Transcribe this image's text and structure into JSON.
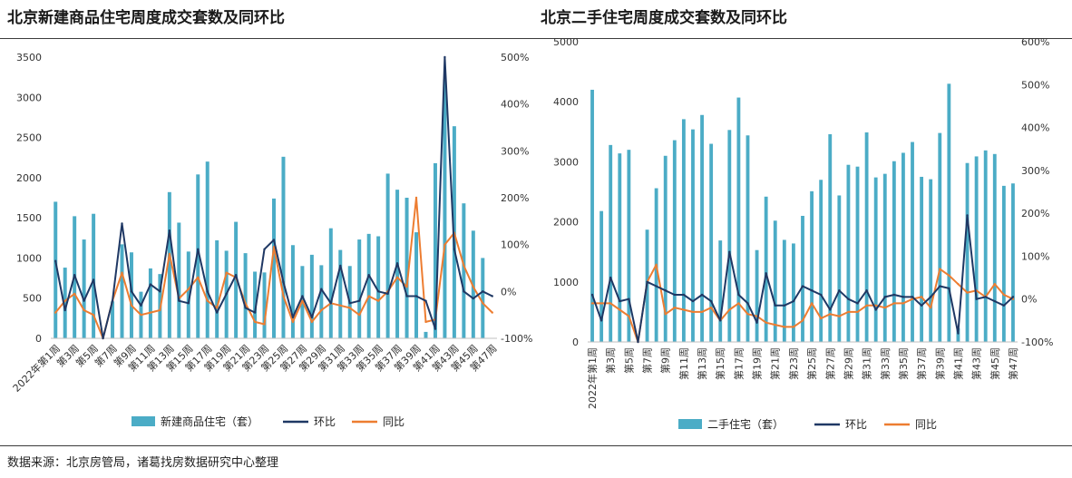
{
  "titles": {
    "left": "北京新建商品住宅周度成交套数及同环比",
    "right": "北京二手住宅周度成交套数及同环比"
  },
  "source": "数据来源：北京房管局，诸葛找房数据研究中心整理",
  "colors": {
    "bar": "#4bacc6",
    "mom": "#1f3864",
    "yoy": "#ed7d31"
  },
  "chart_data": [
    {
      "type": "bar",
      "title": "北京新建商品住宅周度成交套数及同环比",
      "categories": [
        "2022年第1周",
        "第2周",
        "第3周",
        "第4周",
        "第5周",
        "第6周",
        "第7周",
        "第8周",
        "第9周",
        "第10周",
        "第11周",
        "第12周",
        "第13周",
        "第14周",
        "第15周",
        "第16周",
        "第17周",
        "第18周",
        "第19周",
        "第20周",
        "第21周",
        "第22周",
        "第23周",
        "第24周",
        "第25周",
        "第26周",
        "第27周",
        "第28周",
        "第29周",
        "第30周",
        "第31周",
        "第32周",
        "第33周",
        "第34周",
        "第35周",
        "第36周",
        "第37周",
        "第38周",
        "第39周",
        "第40周",
        "第41周",
        "第42周",
        "第43周",
        "第44周",
        "第45周",
        "第46周",
        "第47周"
      ],
      "tick_labels": [
        "2022年第1周",
        "第3周",
        "第5周",
        "第7周",
        "第9周",
        "第11周",
        "第13周",
        "第15周",
        "第17周",
        "第19周",
        "第21周",
        "第23周",
        "第25周",
        "第27周",
        "第29周",
        "第31周",
        "第33周",
        "第35周",
        "第37周",
        "第39周",
        "第41周",
        "第43周",
        "第45周",
        "第47周"
      ],
      "ylim": [
        0,
        3500
      ],
      "y_ticks": [
        "0",
        "500",
        "1000",
        "1500",
        "2000",
        "2500",
        "3000",
        "3500"
      ],
      "y2lim": [
        -100,
        500
      ],
      "y2_ticks": [
        "-100%",
        "0%",
        "100%",
        "200%",
        "300%",
        "400%",
        "500%"
      ],
      "series": [
        {
          "name": "新建商品住宅（套）",
          "axis": "left",
          "values": [
            1700,
            880,
            1520,
            1230,
            1550,
            0,
            460,
            1170,
            1070,
            580,
            870,
            800,
            1820,
            1440,
            1080,
            2040,
            2200,
            1220,
            1090,
            1450,
            1060,
            830,
            820,
            1740,
            2260,
            1160,
            900,
            1040,
            910,
            1370,
            1100,
            900,
            1230,
            1300,
            1270,
            2050,
            1850,
            1750,
            1320,
            80,
            2180,
            3220,
            2640,
            1680,
            1340,
            1000,
            0
          ]
        },
        {
          "name": "环比",
          "axis": "right",
          "values": [
            65,
            -40,
            35,
            -20,
            25,
            -100,
            -20,
            145,
            0,
            -30,
            15,
            0,
            130,
            -20,
            -25,
            90,
            0,
            -45,
            -5,
            35,
            -35,
            -45,
            90,
            110,
            20,
            -55,
            -10,
            -55,
            5,
            -25,
            55,
            -25,
            -20,
            35,
            0,
            -5,
            60,
            -10,
            -10,
            -20,
            -80,
            500,
            90,
            0,
            -15,
            0,
            -10
          ]
        },
        {
          "name": "同比",
          "axis": "right",
          "values": [
            -45,
            -20,
            -5,
            -40,
            -50,
            -100,
            -20,
            40,
            -30,
            -50,
            -45,
            -40,
            80,
            -15,
            5,
            30,
            -20,
            -35,
            40,
            30,
            -25,
            -65,
            -70,
            95,
            -10,
            -65,
            -20,
            -65,
            -40,
            -25,
            -30,
            -35,
            -50,
            -10,
            -20,
            0,
            30,
            10,
            200,
            -65,
            -60,
            100,
            125,
            55,
            10,
            -25,
            -45
          ]
        }
      ]
    },
    {
      "type": "bar",
      "title": "北京二手住宅周度成交套数及同环比",
      "categories": [
        "2022年第1周",
        "第2周",
        "第3周",
        "第4周",
        "第5周",
        "第6周",
        "第7周",
        "第8周",
        "第9周",
        "第10周",
        "第11周",
        "第12周",
        "第13周",
        "第14周",
        "第15周",
        "第16周",
        "第17周",
        "第18周",
        "第19周",
        "第20周",
        "第21周",
        "第22周",
        "第23周",
        "第24周",
        "第25周",
        "第26周",
        "第27周",
        "第28周",
        "第29周",
        "第30周",
        "第31周",
        "第32周",
        "第33周",
        "第34周",
        "第35周",
        "第36周",
        "第37周",
        "第38周",
        "第39周",
        "第40周",
        "第41周",
        "第42周",
        "第43周",
        "第44周",
        "第45周",
        "第46周",
        "第47周"
      ],
      "tick_labels": [
        "2022年第1周",
        "第3周",
        "第5周",
        "第7周",
        "第9周",
        "第11周",
        "第13周",
        "第15周",
        "第17周",
        "第19周",
        "第21周",
        "第23周",
        "第25周",
        "第27周",
        "第29周",
        "第31周",
        "第33周",
        "第35周",
        "第37周",
        "第39周",
        "第41周",
        "第43周",
        "第45周",
        "第47周"
      ],
      "ylim": [
        0,
        5000
      ],
      "y_ticks": [
        "0",
        "1000",
        "2000",
        "3000",
        "4000",
        "5000"
      ],
      "y2lim": [
        -100,
        600
      ],
      "y2_ticks": [
        "-100%",
        "0%",
        "100%",
        "200%",
        "300%",
        "400%",
        "500%",
        "600%"
      ],
      "series": [
        {
          "name": "二手住宅（套）",
          "axis": "left",
          "values": [
            4200,
            2180,
            3280,
            3140,
            3200,
            0,
            1870,
            2560,
            3100,
            3360,
            3710,
            3540,
            3780,
            3300,
            1690,
            3530,
            4070,
            3440,
            1530,
            2420,
            2020,
            1700,
            1640,
            2100,
            2510,
            2700,
            3460,
            2440,
            2950,
            2920,
            3490,
            2740,
            2800,
            3010,
            3150,
            3330,
            2750,
            2710,
            3480,
            4300,
            230,
            2980,
            3090,
            3190,
            3130,
            2600,
            2640
          ]
        },
        {
          "name": "环比",
          "axis": "right",
          "values": [
            10,
            -50,
            50,
            -5,
            0,
            -100,
            40,
            30,
            20,
            10,
            10,
            -5,
            10,
            -5,
            -50,
            110,
            10,
            -10,
            -55,
            60,
            -15,
            -15,
            -5,
            30,
            20,
            10,
            -25,
            20,
            0,
            -10,
            20,
            -25,
            5,
            10,
            5,
            5,
            -15,
            5,
            30,
            25,
            -80,
            195,
            0,
            5,
            -5,
            -15,
            5
          ]
        },
        {
          "name": "同比",
          "axis": "right",
          "values": [
            -10,
            -10,
            -10,
            -25,
            -40,
            -100,
            40,
            80,
            -35,
            -20,
            -25,
            -30,
            -30,
            -20,
            -50,
            -25,
            -10,
            -35,
            -40,
            -55,
            -60,
            -65,
            -65,
            -50,
            -10,
            -45,
            -35,
            -40,
            -30,
            -30,
            -15,
            -15,
            -20,
            -10,
            -10,
            0,
            5,
            -20,
            70,
            55,
            35,
            15,
            20,
            5,
            35,
            10,
            0
          ]
        }
      ]
    }
  ]
}
